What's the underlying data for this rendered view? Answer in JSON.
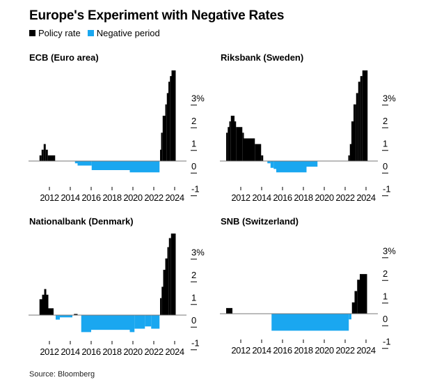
{
  "title": "Europe's Experiment with Negative Rates",
  "legend": [
    {
      "label": "Policy rate",
      "color": "#000000"
    },
    {
      "label": "Negative period",
      "color": "#1aa7f0"
    }
  ],
  "source": "Source: Bloomberg",
  "chart_data": [
    {
      "type": "area",
      "title": "ECB (Euro area)",
      "xlabel": "",
      "ylabel": "",
      "xlim": [
        2010,
        2024.5
      ],
      "ylim": [
        -1,
        4
      ],
      "x_ticks": [
        2012,
        2014,
        2016,
        2018,
        2020,
        2022,
        2024
      ],
      "y_ticks": [
        {
          "value": 3,
          "label": "3%"
        },
        {
          "value": 2,
          "label": "2"
        },
        {
          "value": 1,
          "label": "1"
        },
        {
          "value": 0,
          "label": "0"
        },
        {
          "value": -1,
          "label": "-1"
        }
      ],
      "series": [
        {
          "name": "Policy rate",
          "steps": [
            [
              2011.05,
              0.25
            ],
            [
              2011.25,
              0.5
            ],
            [
              2011.45,
              0.75
            ],
            [
              2011.65,
              0.5
            ],
            [
              2011.85,
              0.25
            ],
            [
              2012.55,
              0
            ],
            [
              2014.45,
              -0.1
            ],
            [
              2014.7,
              -0.2
            ],
            [
              2016.05,
              -0.4
            ],
            [
              2019.7,
              -0.5
            ],
            [
              2022.55,
              0
            ],
            [
              2022.6,
              0.5
            ],
            [
              2022.7,
              1.25
            ],
            [
              2022.85,
              2.0
            ],
            [
              2023.1,
              2.5
            ],
            [
              2023.25,
              3.0
            ],
            [
              2023.4,
              3.5
            ],
            [
              2023.55,
              3.75
            ],
            [
              2023.7,
              4.0
            ],
            [
              2024.1,
              4.0
            ]
          ]
        }
      ]
    },
    {
      "type": "area",
      "title": "Riksbank (Sweden)",
      "xlabel": "",
      "ylabel": "",
      "xlim": [
        2010,
        2024.5
      ],
      "ylim": [
        -1,
        4
      ],
      "x_ticks": [
        2012,
        2014,
        2016,
        2018,
        2020,
        2022,
        2024
      ],
      "y_ticks": [
        {
          "value": 3,
          "label": "3%"
        },
        {
          "value": 2,
          "label": "2"
        },
        {
          "value": 1,
          "label": "1"
        },
        {
          "value": 0,
          "label": "0"
        },
        {
          "value": -1,
          "label": "-1"
        }
      ],
      "series": [
        {
          "name": "Policy rate",
          "steps": [
            [
              2010.6,
              1.25
            ],
            [
              2010.75,
              1.5
            ],
            [
              2010.9,
              1.75
            ],
            [
              2011.05,
              2.0
            ],
            [
              2011.4,
              1.75
            ],
            [
              2011.55,
              1.5
            ],
            [
              2012.15,
              1.25
            ],
            [
              2012.3,
              1.0
            ],
            [
              2013.35,
              0.75
            ],
            [
              2013.95,
              0.25
            ],
            [
              2014.15,
              0
            ],
            [
              2014.55,
              -0.1
            ],
            [
              2014.85,
              -0.3
            ],
            [
              2015.15,
              -0.35
            ],
            [
              2015.4,
              -0.5
            ],
            [
              2018.3,
              -0.25
            ],
            [
              2019.35,
              0
            ],
            [
              2022.3,
              0.25
            ],
            [
              2022.45,
              0.75
            ],
            [
              2022.6,
              1.75
            ],
            [
              2022.8,
              2.5
            ],
            [
              2023.05,
              3.0
            ],
            [
              2023.25,
              3.5
            ],
            [
              2023.45,
              3.75
            ],
            [
              2023.65,
              4.0
            ],
            [
              2024.15,
              4.0
            ]
          ]
        }
      ]
    },
    {
      "type": "area",
      "title": "Nationalbank (Denmark)",
      "xlabel": "",
      "ylabel": "",
      "xlim": [
        2010,
        2024.5
      ],
      "ylim": [
        -1,
        4
      ],
      "x_ticks": [
        2012,
        2014,
        2016,
        2018,
        2020,
        2022,
        2024
      ],
      "y_ticks": [
        {
          "value": 3,
          "label": "3%"
        },
        {
          "value": 2,
          "label": "2"
        },
        {
          "value": 1,
          "label": "1"
        },
        {
          "value": 0,
          "label": "0"
        },
        {
          "value": -1,
          "label": "-1"
        }
      ],
      "series": [
        {
          "name": "Policy rate",
          "steps": [
            [
              2011.05,
              0.7
            ],
            [
              2011.3,
              0.9
            ],
            [
              2011.5,
              1.15
            ],
            [
              2011.7,
              0.9
            ],
            [
              2011.9,
              0.3
            ],
            [
              2012.4,
              0
            ],
            [
              2012.6,
              -0.2
            ],
            [
              2013.0,
              -0.1
            ],
            [
              2014.2,
              0
            ],
            [
              2014.35,
              0.05
            ],
            [
              2014.7,
              0
            ],
            [
              2015.05,
              -0.75
            ],
            [
              2016.0,
              -0.65
            ],
            [
              2019.7,
              -0.75
            ],
            [
              2020.15,
              -0.6
            ],
            [
              2021.15,
              -0.5
            ],
            [
              2021.75,
              -0.6
            ],
            [
              2022.55,
              0
            ],
            [
              2022.6,
              0.75
            ],
            [
              2022.75,
              1.25
            ],
            [
              2022.9,
              2.0
            ],
            [
              2023.1,
              2.5
            ],
            [
              2023.3,
              3.0
            ],
            [
              2023.45,
              3.4
            ],
            [
              2023.65,
              3.6
            ],
            [
              2024.1,
              3.6
            ]
          ]
        }
      ]
    },
    {
      "type": "area",
      "title": "SNB (Switzerland)",
      "xlabel": "",
      "ylabel": "",
      "xlim": [
        2010,
        2024.5
      ],
      "ylim": [
        -1,
        4
      ],
      "x_ticks": [
        2012,
        2014,
        2016,
        2018,
        2020,
        2022,
        2024
      ],
      "y_ticks": [
        {
          "value": 3,
          "label": "3%"
        },
        {
          "value": 2,
          "label": "2"
        },
        {
          "value": 1,
          "label": "1"
        },
        {
          "value": 0,
          "label": "0"
        },
        {
          "value": -1,
          "label": "-1"
        }
      ],
      "series": [
        {
          "name": "Policy rate",
          "steps": [
            [
              2010.6,
              0.25
            ],
            [
              2011.2,
              0
            ],
            [
              2014.95,
              -0.75
            ],
            [
              2022.35,
              -0.25
            ],
            [
              2022.6,
              0
            ],
            [
              2022.65,
              0.5
            ],
            [
              2022.9,
              1.0
            ],
            [
              2023.15,
              1.5
            ],
            [
              2023.4,
              1.75
            ],
            [
              2024.1,
              1.75
            ]
          ]
        }
      ]
    }
  ]
}
